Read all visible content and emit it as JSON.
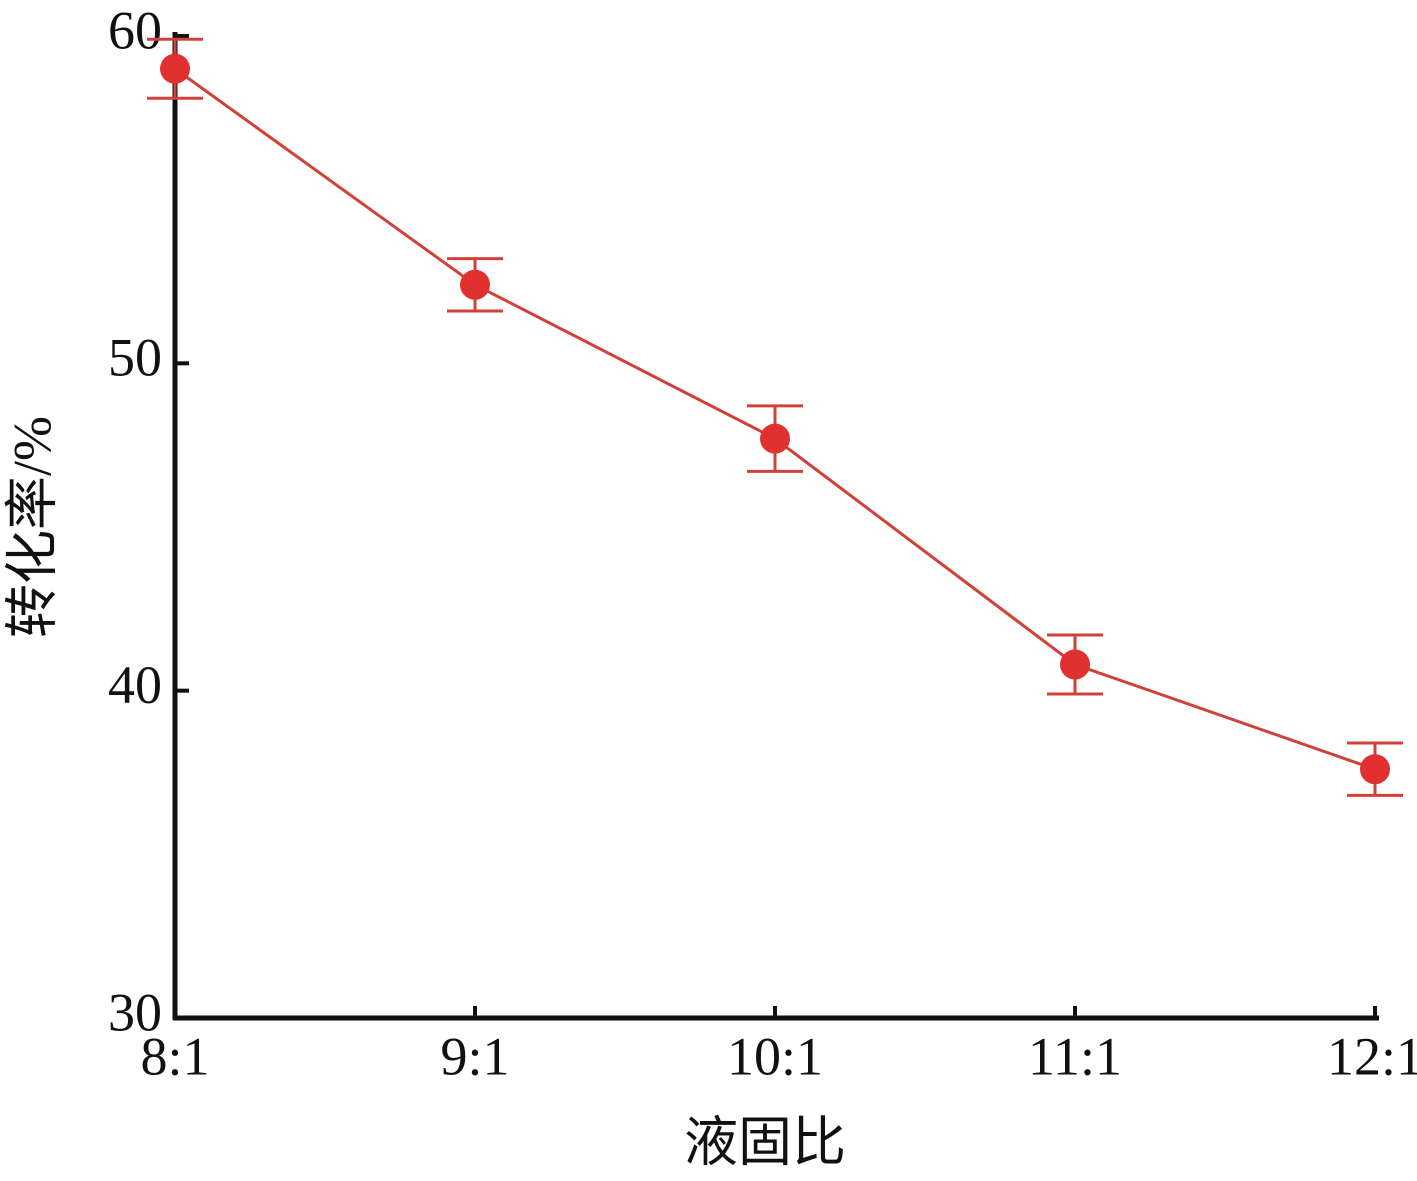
{
  "chart_data": {
    "type": "line",
    "x_label": "液固比",
    "y_label": "转化率/%",
    "categories": [
      "8:1",
      "9:1",
      "10:1",
      "11:1",
      "12:1"
    ],
    "values": [
      59.0,
      52.4,
      47.7,
      40.8,
      37.6
    ],
    "errors": [
      0.9,
      0.8,
      1.0,
      0.9,
      0.8
    ],
    "color": "#e03030",
    "line_color": "#d2403a",
    "ylim": [
      30,
      60
    ],
    "yticks": [
      30,
      40,
      50,
      60
    ]
  }
}
